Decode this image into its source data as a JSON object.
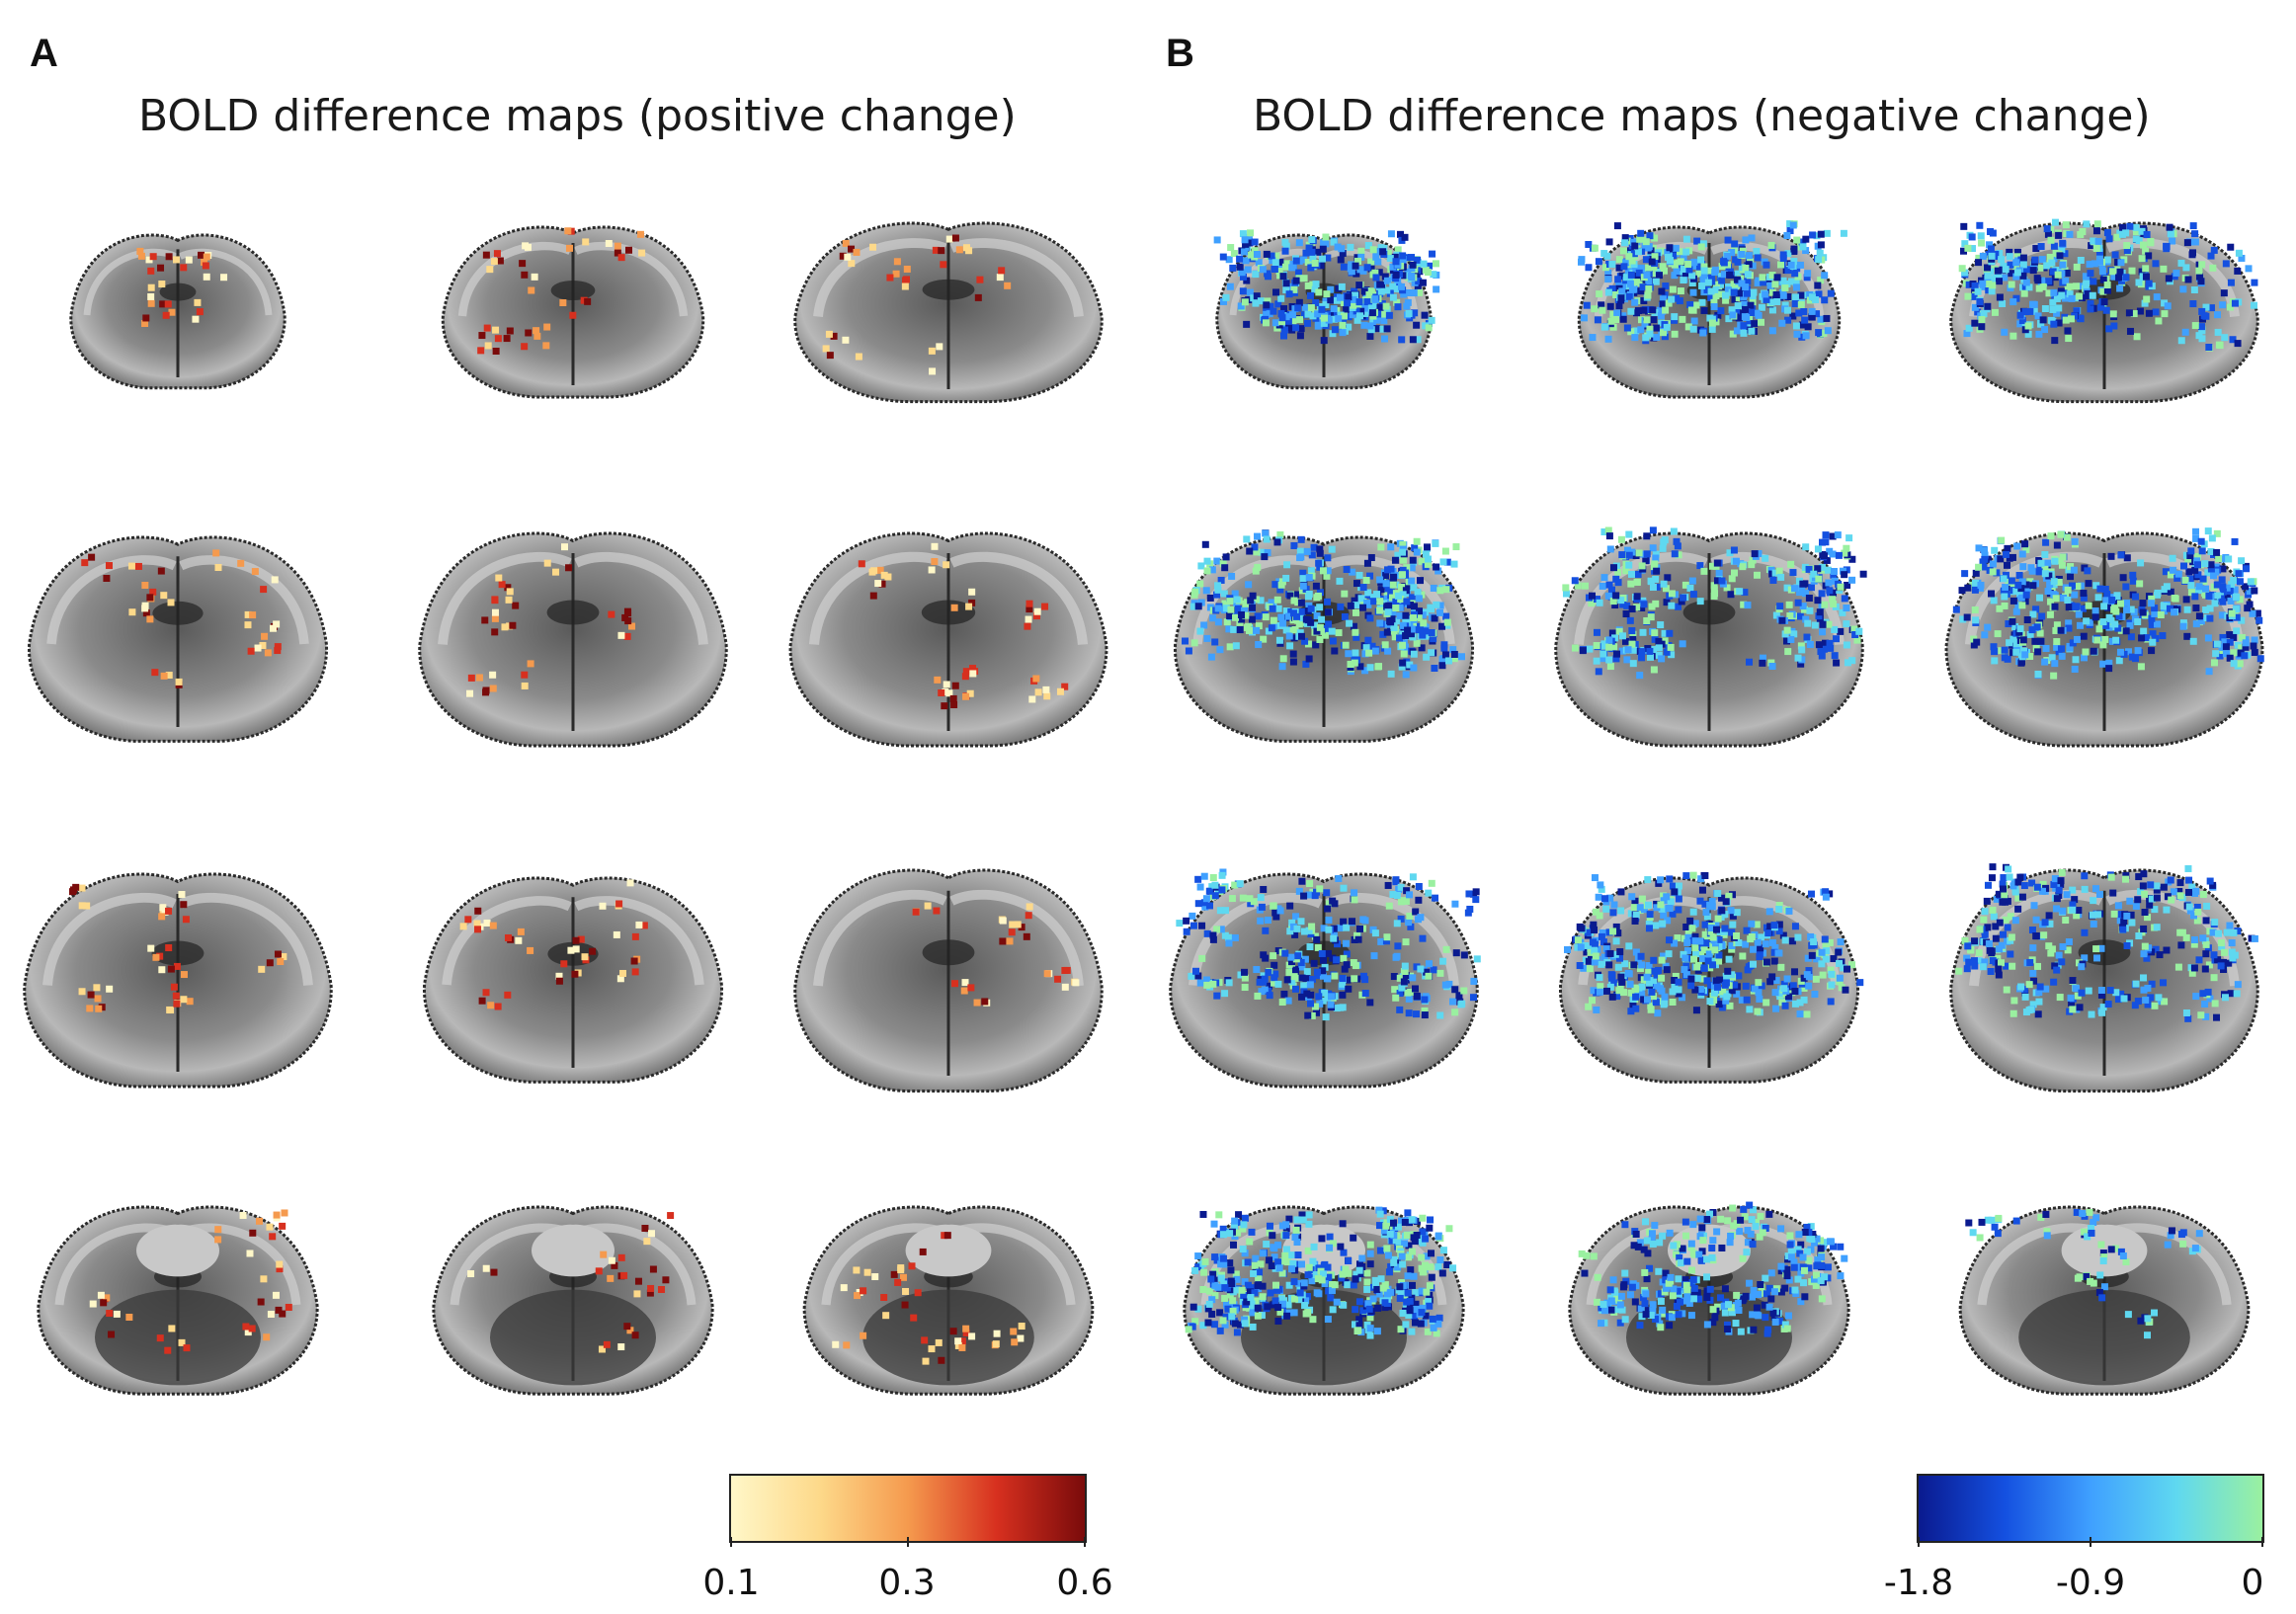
{
  "panels": [
    {
      "letter": "A",
      "title": "BOLD difference maps (positive change)",
      "colormap": [
        "#fff7c8",
        "#fdd98a",
        "#f59a4e",
        "#d7301f",
        "#7a0b0b"
      ],
      "colorbar_ticks": [
        "0.1",
        "0.3",
        "0.6"
      ],
      "activation": "positive"
    },
    {
      "letter": "B",
      "title": "BOLD difference maps (negative change)",
      "colormap": [
        "#0a1a8f",
        "#1450e0",
        "#3fa0ff",
        "#5fd8f0",
        "#9af0a0"
      ],
      "colorbar_ticks": [
        "-1.8",
        "-0.9",
        "0"
      ],
      "activation": "negative"
    }
  ],
  "slices_per_panel": 12,
  "grid": "4 rows x 3 columns of coronal brain slices"
}
